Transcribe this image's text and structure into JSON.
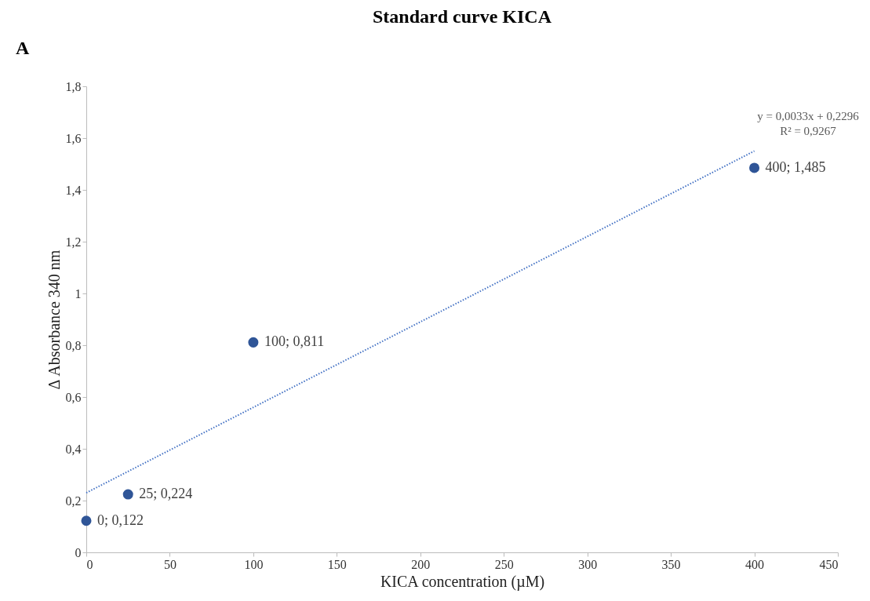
{
  "chart_data": {
    "type": "scatter",
    "title": "Standard curve KICA",
    "xlabel": "KICA concentration (µM)",
    "ylabel": "Δ Absorbance 340 nm",
    "xlim": [
      0,
      450
    ],
    "xticks": [
      0,
      50,
      100,
      150,
      200,
      250,
      300,
      350,
      400,
      450
    ],
    "ylim": [
      0,
      1.8
    ],
    "yticks": [
      {
        "value": 0,
        "label": "0"
      },
      {
        "value": 0.2,
        "label": "0,2"
      },
      {
        "value": 0.4,
        "label": "0,4"
      },
      {
        "value": 0.6,
        "label": "0,6"
      },
      {
        "value": 0.8,
        "label": "0,8"
      },
      {
        "value": 1,
        "label": "1"
      },
      {
        "value": 1.2,
        "label": "1,2"
      },
      {
        "value": 1.4,
        "label": "1,4"
      },
      {
        "value": 1.6,
        "label": "1,6"
      },
      {
        "value": 1.8,
        "label": "1,8"
      }
    ],
    "grid": false,
    "marker": "circle",
    "series": [
      {
        "color": "#2f5597",
        "x": [
          0,
          25,
          100,
          400
        ],
        "values": [
          0.122,
          0.224,
          0.811,
          1.485
        ],
        "value_labels": [
          "0; 0,122",
          "25; 0,224",
          "100; 0,811",
          "400; 1,485"
        ]
      },
      {
        "type": "line",
        "color": "#4472c4",
        "line_style": "dotted",
        "marker": "none",
        "x": [
          0,
          400
        ],
        "values": [
          0.23,
          1.55
        ]
      }
    ],
    "annotations": [
      "A",
      "y = 0,0033x + 0,2296",
      "R² = 0,9267"
    ]
  }
}
